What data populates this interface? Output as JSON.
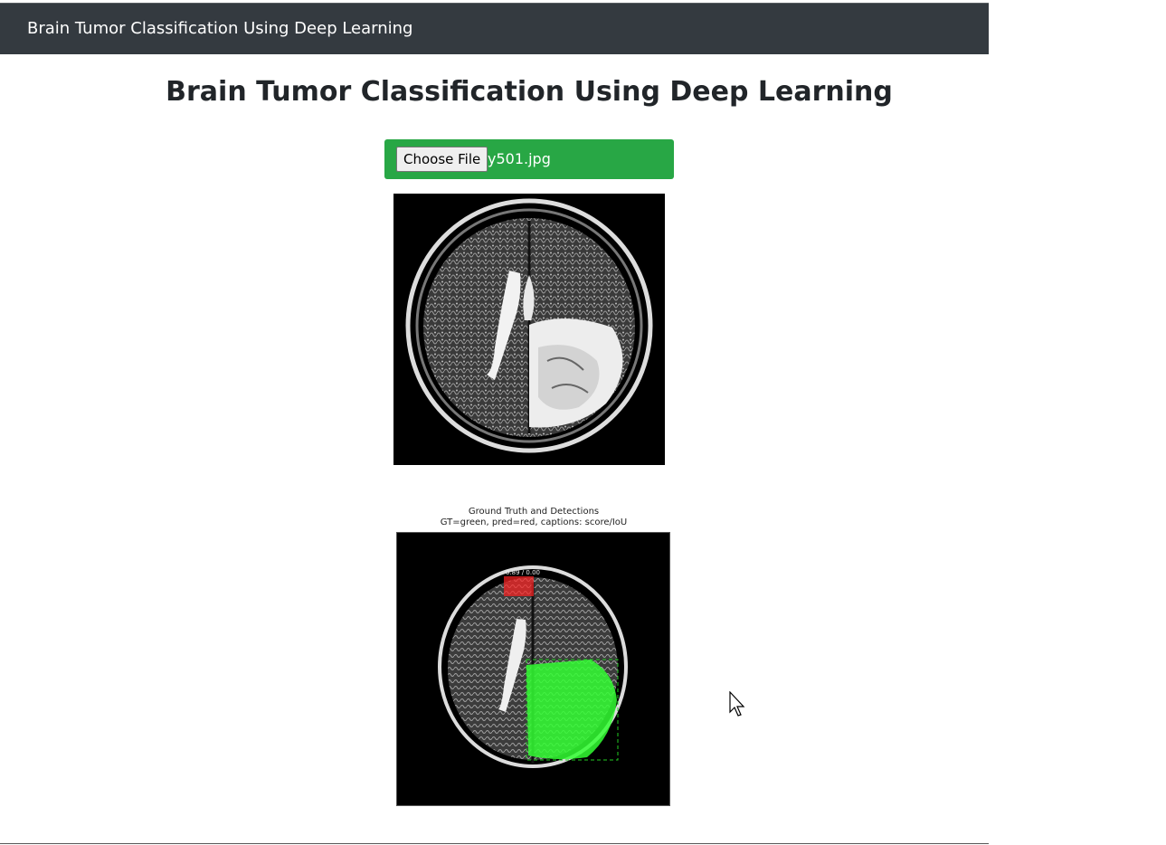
{
  "navbar": {
    "brand": "Brain Tumor Classification Using Deep Learning"
  },
  "page": {
    "title": "Brain Tumor Classification Using Deep Learning"
  },
  "upload": {
    "button_label": "Choose File",
    "file_name": "y501.jpg"
  },
  "result_figure": {
    "title": "Ground Truth and Detections",
    "subtitle": "GT=green, pred=red, captions: score/IoU",
    "pred_caption": "0.89 / 0.00",
    "colors": {
      "ground_truth": "#33ff33",
      "prediction": "#ff2222"
    }
  },
  "colors": {
    "navbar": "#343a40",
    "upload_bg": "#28a745"
  }
}
